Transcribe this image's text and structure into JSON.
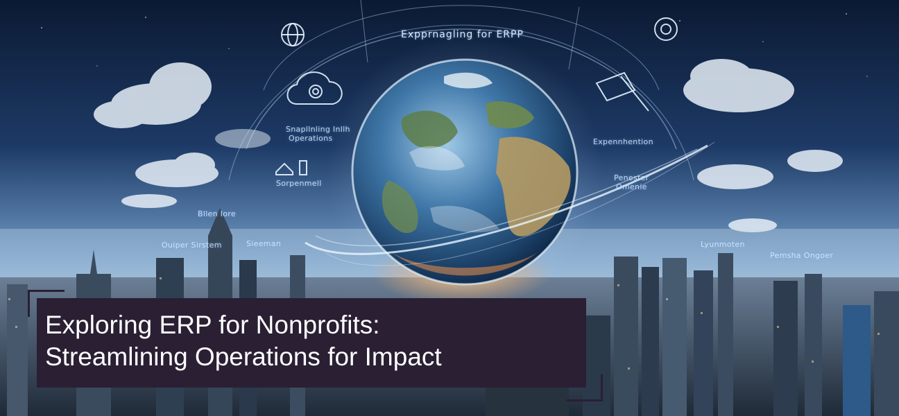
{
  "hero": {
    "title_line_1": "Exploring ERP for Nonprofits:",
    "title_line_2": "Streamlining Operations for Impact",
    "colors": {
      "sky_top": "#0d1f3a",
      "sky_horizon": "#8fb4d8",
      "title_card": "#2a1f33",
      "title_text": "#ffffff",
      "hologram": "#bfe3ff"
    },
    "hologram_labels": {
      "arc_heading": "Expprnagling for ERPP",
      "left_top": "Snapllnling Inllh",
      "left_top_sub": "Operations",
      "left_mid": "Sorpenmell",
      "left_low": "Bllen Iore",
      "left_city_a": "Ouiper Sirstem",
      "left_city_b": "Sieeman",
      "right_top": "Expennhention",
      "right_mid": "Penester",
      "right_mid_sub": "Omenie",
      "right_city_a": "Lyunmoten",
      "right_city_b": "Pemsha Ongoer"
    },
    "icons": [
      "globe-icon",
      "gear-icon",
      "cloud-target-icon",
      "house-icon",
      "satellite-icon",
      "building-icon"
    ]
  }
}
